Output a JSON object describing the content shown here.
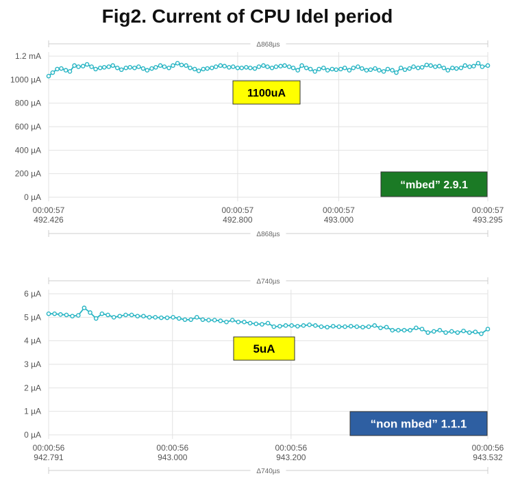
{
  "figure": {
    "title": "Fig2. Current of CPU Idel period"
  },
  "colors": {
    "series": "#26b4c3",
    "yellow_box": "#ffff00",
    "green_box": "#1b7a25",
    "blue_box": "#2e5fa2"
  },
  "chart_data": [
    {
      "type": "line",
      "delta_label": "Δ868µs",
      "x": [
        492.426,
        492.434,
        492.443,
        492.451,
        492.46,
        492.468,
        492.477,
        492.485,
        492.494,
        492.502,
        492.511,
        492.519,
        492.528,
        492.536,
        492.545,
        492.553,
        492.562,
        492.57,
        492.579,
        492.587,
        492.596,
        492.604,
        492.613,
        492.621,
        492.63,
        492.638,
        492.647,
        492.655,
        492.664,
        492.672,
        492.681,
        492.689,
        492.698,
        492.706,
        492.715,
        492.723,
        492.732,
        492.74,
        492.749,
        492.757,
        492.766,
        492.774,
        492.783,
        492.791,
        492.8,
        492.808,
        492.817,
        492.825,
        492.834,
        492.842,
        492.851,
        492.859,
        492.868,
        492.876,
        492.885,
        492.893,
        492.902,
        492.91,
        492.919,
        492.927,
        492.936,
        492.944,
        492.953,
        492.961,
        492.97,
        492.978,
        492.987,
        492.995,
        493.004,
        493.012,
        493.021,
        493.029,
        493.038,
        493.046,
        493.055,
        493.063,
        493.072,
        493.08,
        493.089,
        493.097,
        493.106,
        493.114,
        493.123,
        493.131,
        493.14,
        493.148,
        493.157,
        493.165,
        493.174,
        493.182,
        493.191,
        493.199,
        493.208,
        493.216,
        493.225,
        493.233,
        493.242,
        493.25,
        493.259,
        493.267,
        493.276,
        493.284,
        493.295
      ],
      "series": [
        {
          "values": [
            1030,
            1060,
            1090,
            1095,
            1080,
            1070,
            1120,
            1110,
            1115,
            1130,
            1110,
            1090,
            1100,
            1105,
            1110,
            1120,
            1100,
            1085,
            1100,
            1105,
            1100,
            1110,
            1095,
            1080,
            1095,
            1105,
            1120,
            1110,
            1100,
            1120,
            1140,
            1125,
            1120,
            1100,
            1090,
            1075,
            1090,
            1095,
            1100,
            1110,
            1120,
            1115,
            1105,
            1110,
            1100,
            1100,
            1105,
            1100,
            1095,
            1110,
            1120,
            1110,
            1100,
            1110,
            1115,
            1120,
            1110,
            1100,
            1080,
            1120,
            1100,
            1090,
            1070,
            1090,
            1100,
            1080,
            1090,
            1085,
            1090,
            1100,
            1080,
            1100,
            1110,
            1095,
            1080,
            1085,
            1095,
            1080,
            1070,
            1090,
            1080,
            1060,
            1100,
            1085,
            1095,
            1110,
            1100,
            1105,
            1125,
            1120,
            1110,
            1115,
            1100,
            1080,
            1100,
            1095,
            1100,
            1120,
            1110,
            1115,
            1140,
            1110,
            1120
          ]
        }
      ],
      "ylim": [
        0,
        1200
      ],
      "yticks": [
        "0 µA",
        "200 µA",
        "400 µA",
        "600 µA",
        "800 µA",
        "1000 µA",
        "1.2 mA"
      ],
      "xticks": [
        {
          "line1": "00:00:57",
          "line2": "492.426"
        },
        {
          "line1": "00:00:57",
          "line2": "492.800"
        },
        {
          "line1": "00:00:57",
          "line2": "493.000"
        },
        {
          "line1": "00:00:57",
          "line2": "493.295"
        }
      ],
      "xtick_values": [
        492.426,
        492.8,
        493.0,
        493.295
      ],
      "annotations": {
        "value": "1100uA",
        "label": "“mbed” 2.9.1"
      }
    },
    {
      "type": "line",
      "delta_label": "Δ740µs",
      "x": [
        942.791,
        942.801,
        942.811,
        942.821,
        942.831,
        942.841,
        942.851,
        942.861,
        942.871,
        942.881,
        942.891,
        942.901,
        942.911,
        942.921,
        942.931,
        942.941,
        942.951,
        942.961,
        942.971,
        942.981,
        942.991,
        943.001,
        943.011,
        943.021,
        943.031,
        943.041,
        943.051,
        943.061,
        943.071,
        943.081,
        943.091,
        943.101,
        943.111,
        943.121,
        943.131,
        943.141,
        943.151,
        943.161,
        943.171,
        943.181,
        943.191,
        943.201,
        943.211,
        943.221,
        943.231,
        943.241,
        943.251,
        943.261,
        943.271,
        943.281,
        943.291,
        943.301,
        943.311,
        943.321,
        943.331,
        943.341,
        943.351,
        943.361,
        943.371,
        943.381,
        943.391,
        943.401,
        943.411,
        943.421,
        943.431,
        943.441,
        943.451,
        943.461,
        943.471,
        943.481,
        943.491,
        943.501,
        943.511,
        943.521,
        943.532
      ],
      "series": [
        {
          "values": [
            5.15,
            5.15,
            5.12,
            5.1,
            5.05,
            5.08,
            5.4,
            5.2,
            4.95,
            5.15,
            5.1,
            5.0,
            5.05,
            5.1,
            5.1,
            5.05,
            5.05,
            5.0,
            5.0,
            4.98,
            4.98,
            5.0,
            4.95,
            4.9,
            4.9,
            5.0,
            4.9,
            4.88,
            4.88,
            4.85,
            4.8,
            4.88,
            4.8,
            4.8,
            4.75,
            4.72,
            4.7,
            4.75,
            4.6,
            4.62,
            4.65,
            4.65,
            4.62,
            4.65,
            4.68,
            4.65,
            4.6,
            4.58,
            4.62,
            4.6,
            4.6,
            4.62,
            4.6,
            4.58,
            4.6,
            4.65,
            4.55,
            4.58,
            4.45,
            4.45,
            4.45,
            4.45,
            4.55,
            4.5,
            4.35,
            4.4,
            4.45,
            4.35,
            4.4,
            4.35,
            4.42,
            4.35,
            4.38,
            4.3,
            4.5
          ]
        }
      ],
      "ylim": [
        0,
        6
      ],
      "yticks": [
        "0 µA",
        "1 µA",
        "2 µA",
        "3 µA",
        "4 µA",
        "5 µA",
        "6 µA"
      ],
      "xticks": [
        {
          "line1": "00:00:56",
          "line2": "942.791"
        },
        {
          "line1": "00:00:56",
          "line2": "943.000"
        },
        {
          "line1": "00:00:56",
          "line2": "943.200"
        },
        {
          "line1": "00:00:56",
          "line2": "943.532"
        }
      ],
      "xtick_values": [
        942.791,
        943.0,
        943.2,
        943.532
      ],
      "annotations": {
        "value": "5uA",
        "label": "“non mbed” 1.1.1"
      }
    }
  ]
}
